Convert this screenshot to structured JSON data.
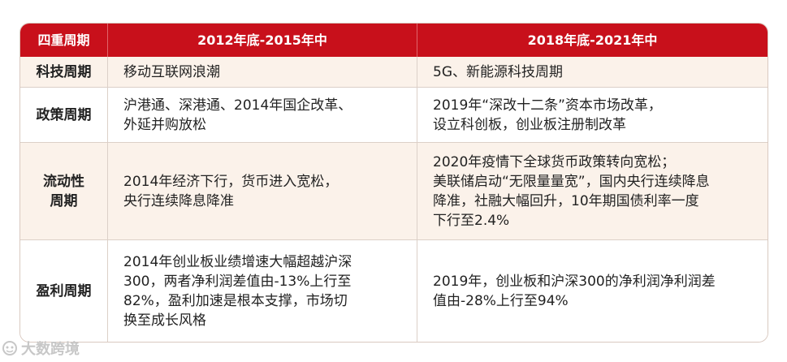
{
  "table": {
    "headers": [
      "四重周期",
      "2012年底-2015年中",
      "2018年底-2021年中"
    ],
    "rows": [
      {
        "label": "科技周期",
        "col1": "移动互联网浪潮",
        "col2": "5G、新能源科技周期"
      },
      {
        "label": "政策周期",
        "col1": "沪港通、深港通、2014年国企改革、\n外延并购放松",
        "col2": "2019年“深改十二条”资本市场改革，\n设立科创板，创业板注册制改革"
      },
      {
        "label": "流动性\n周期",
        "col1": "2014年经济下行，货币进入宽松，\n央行连续降息降准",
        "col2": "2020年疫情下全球货币政策转向宽松；\n美联储启动“无限量量宽”，国内央行连续降息\n降准，社融大幅回升，10年期国债利率一度\n下行至2.4%"
      },
      {
        "label": "盈利周期",
        "col1": "2014年创业板业绩增速大幅超越沪深\n300，两者净利润差值由-13%上行至\n82%，盈利加速是根本支撑，市场切\n换至成长风格",
        "col2": "2019年，创业板和沪深300的净利润净利润差\n值由-28%上行至94%"
      }
    ]
  },
  "watermark": {
    "text": "大数跨境",
    "icon": "brand-logo-icon"
  },
  "colors": {
    "header_bg": "#c8101b",
    "row_tint": "#fbf2ea",
    "border": "#dcd0c8"
  }
}
